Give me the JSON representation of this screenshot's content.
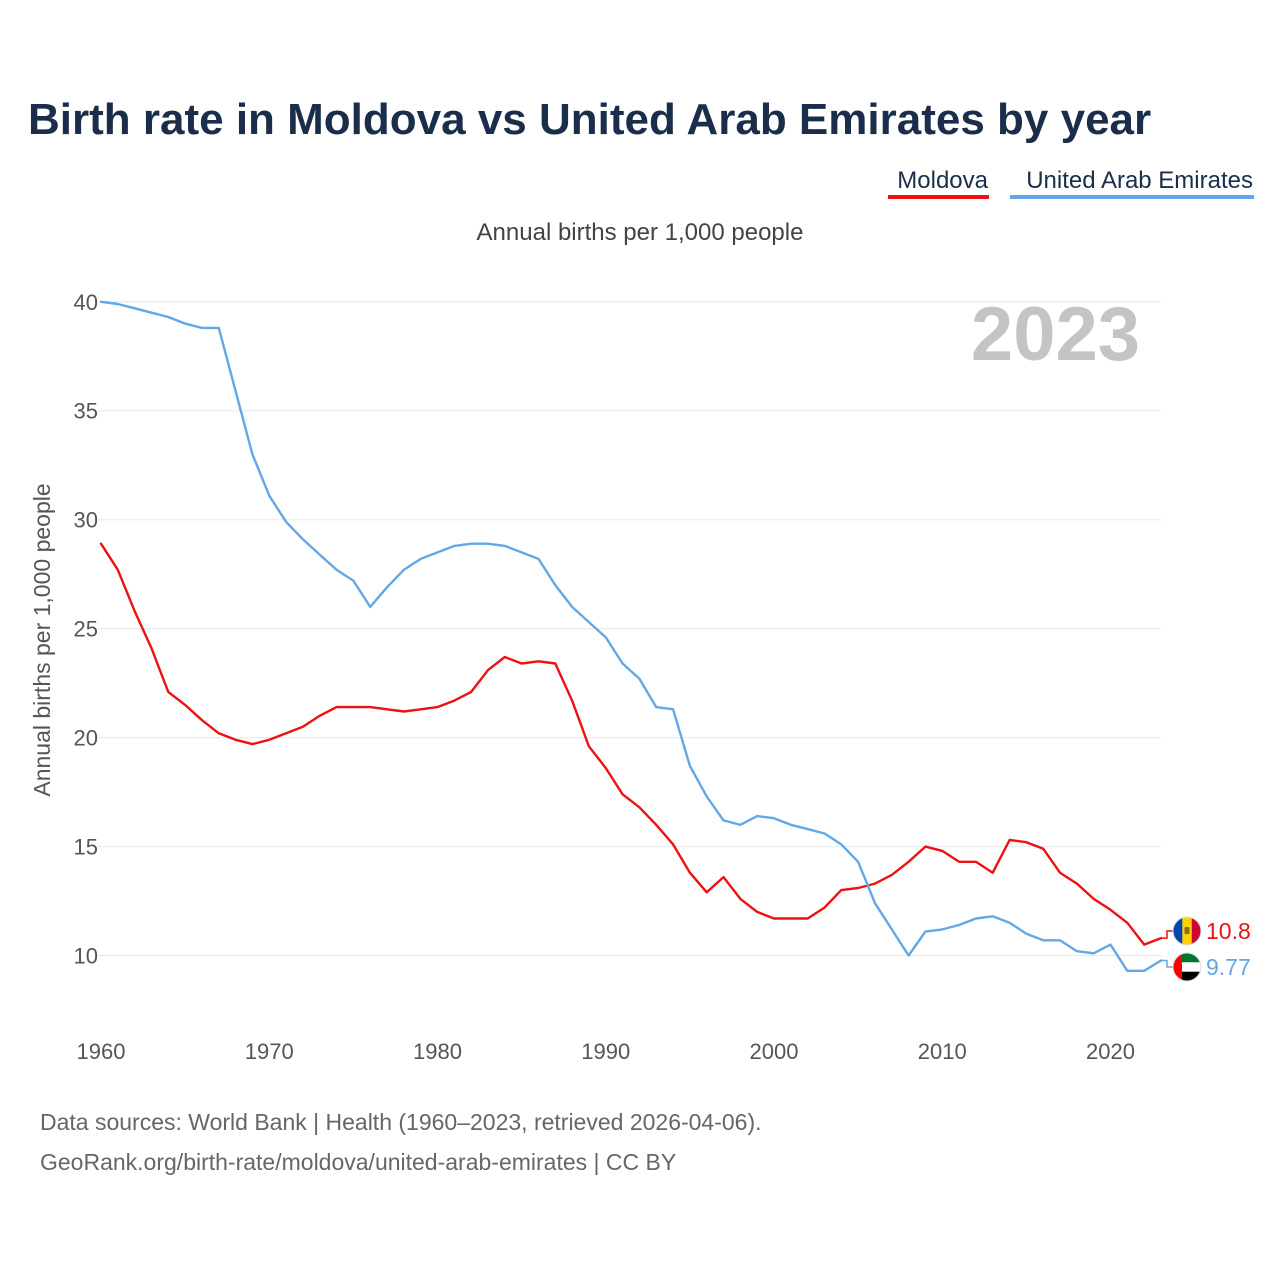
{
  "colors": {
    "moldova": "#ee1111",
    "uae": "#63a7e6",
    "title": "#1a2e4c",
    "grid": "#e8e8e8"
  },
  "chart_data": {
    "type": "line",
    "title": "Birth rate in Moldova vs United Arab Emirates by year",
    "subtitle": "Annual births per 1,000 people",
    "xlabel": "",
    "ylabel": "Annual births per 1,000 people",
    "year_label": "2023",
    "xlim": [
      1960,
      2023
    ],
    "ylim": [
      7.5,
      41
    ],
    "x_ticks": [
      1960,
      1970,
      1980,
      1990,
      2000,
      2010,
      2020
    ],
    "y_ticks": [
      10,
      15,
      20,
      25,
      30,
      35,
      40
    ],
    "grid": true,
    "legend_position": "top-right",
    "x": [
      1960,
      1961,
      1962,
      1963,
      1964,
      1965,
      1966,
      1967,
      1968,
      1969,
      1970,
      1971,
      1972,
      1973,
      1974,
      1975,
      1976,
      1977,
      1978,
      1979,
      1980,
      1981,
      1982,
      1983,
      1984,
      1985,
      1986,
      1987,
      1988,
      1989,
      1990,
      1991,
      1992,
      1993,
      1994,
      1995,
      1996,
      1997,
      1998,
      1999,
      2000,
      2001,
      2002,
      2003,
      2004,
      2005,
      2006,
      2007,
      2008,
      2009,
      2010,
      2011,
      2012,
      2013,
      2014,
      2015,
      2016,
      2017,
      2018,
      2019,
      2020,
      2021,
      2022,
      2023
    ],
    "series": [
      {
        "name": "Moldova",
        "color": "#ee1111",
        "end_label": "10.8",
        "flag": "moldova-flag-icon",
        "values": [
          28.9,
          27.7,
          25.8,
          24.1,
          22.1,
          21.5,
          20.8,
          20.2,
          19.9,
          19.7,
          19.9,
          20.2,
          20.5,
          21.0,
          21.4,
          21.4,
          21.4,
          21.3,
          21.2,
          21.3,
          21.4,
          21.7,
          22.1,
          23.1,
          23.7,
          23.4,
          23.5,
          23.4,
          21.7,
          19.6,
          18.6,
          17.4,
          16.8,
          16.0,
          15.1,
          13.8,
          12.9,
          13.6,
          12.6,
          12.0,
          11.7,
          11.7,
          11.7,
          12.2,
          13.0,
          13.1,
          13.3,
          13.7,
          14.3,
          15.0,
          14.8,
          14.3,
          14.3,
          13.8,
          15.3,
          15.2,
          14.9,
          13.8,
          13.3,
          12.6,
          12.1,
          11.5,
          10.5,
          10.8
        ]
      },
      {
        "name": "United Arab Emirates",
        "color": "#63a7e6",
        "end_label": "9.77",
        "flag": "uae-flag-icon",
        "values": [
          40.0,
          39.9,
          39.7,
          39.5,
          39.3,
          39.0,
          38.8,
          38.8,
          35.9,
          33.0,
          31.1,
          29.9,
          29.1,
          28.4,
          27.7,
          27.2,
          26.0,
          26.9,
          27.7,
          28.2,
          28.5,
          28.8,
          28.9,
          28.9,
          28.8,
          28.5,
          28.2,
          27.0,
          26.0,
          25.3,
          24.6,
          23.4,
          22.7,
          21.4,
          21.3,
          18.7,
          17.3,
          16.2,
          16.0,
          16.4,
          16.3,
          16.0,
          15.8,
          15.6,
          15.1,
          14.3,
          12.4,
          11.2,
          10.0,
          11.1,
          11.2,
          11.4,
          11.7,
          11.8,
          11.5,
          11.0,
          10.7,
          10.7,
          10.2,
          10.1,
          10.5,
          9.3,
          9.3,
          9.77
        ]
      }
    ]
  },
  "legend": [
    "Moldova",
    "United Arab Emirates"
  ],
  "footer": {
    "line1": "Data sources: World Bank | Health (1960–2023, retrieved 2026-04-06).",
    "line2": "GeoRank.org/birth-rate/moldova/united-arab-emirates | CC BY"
  }
}
